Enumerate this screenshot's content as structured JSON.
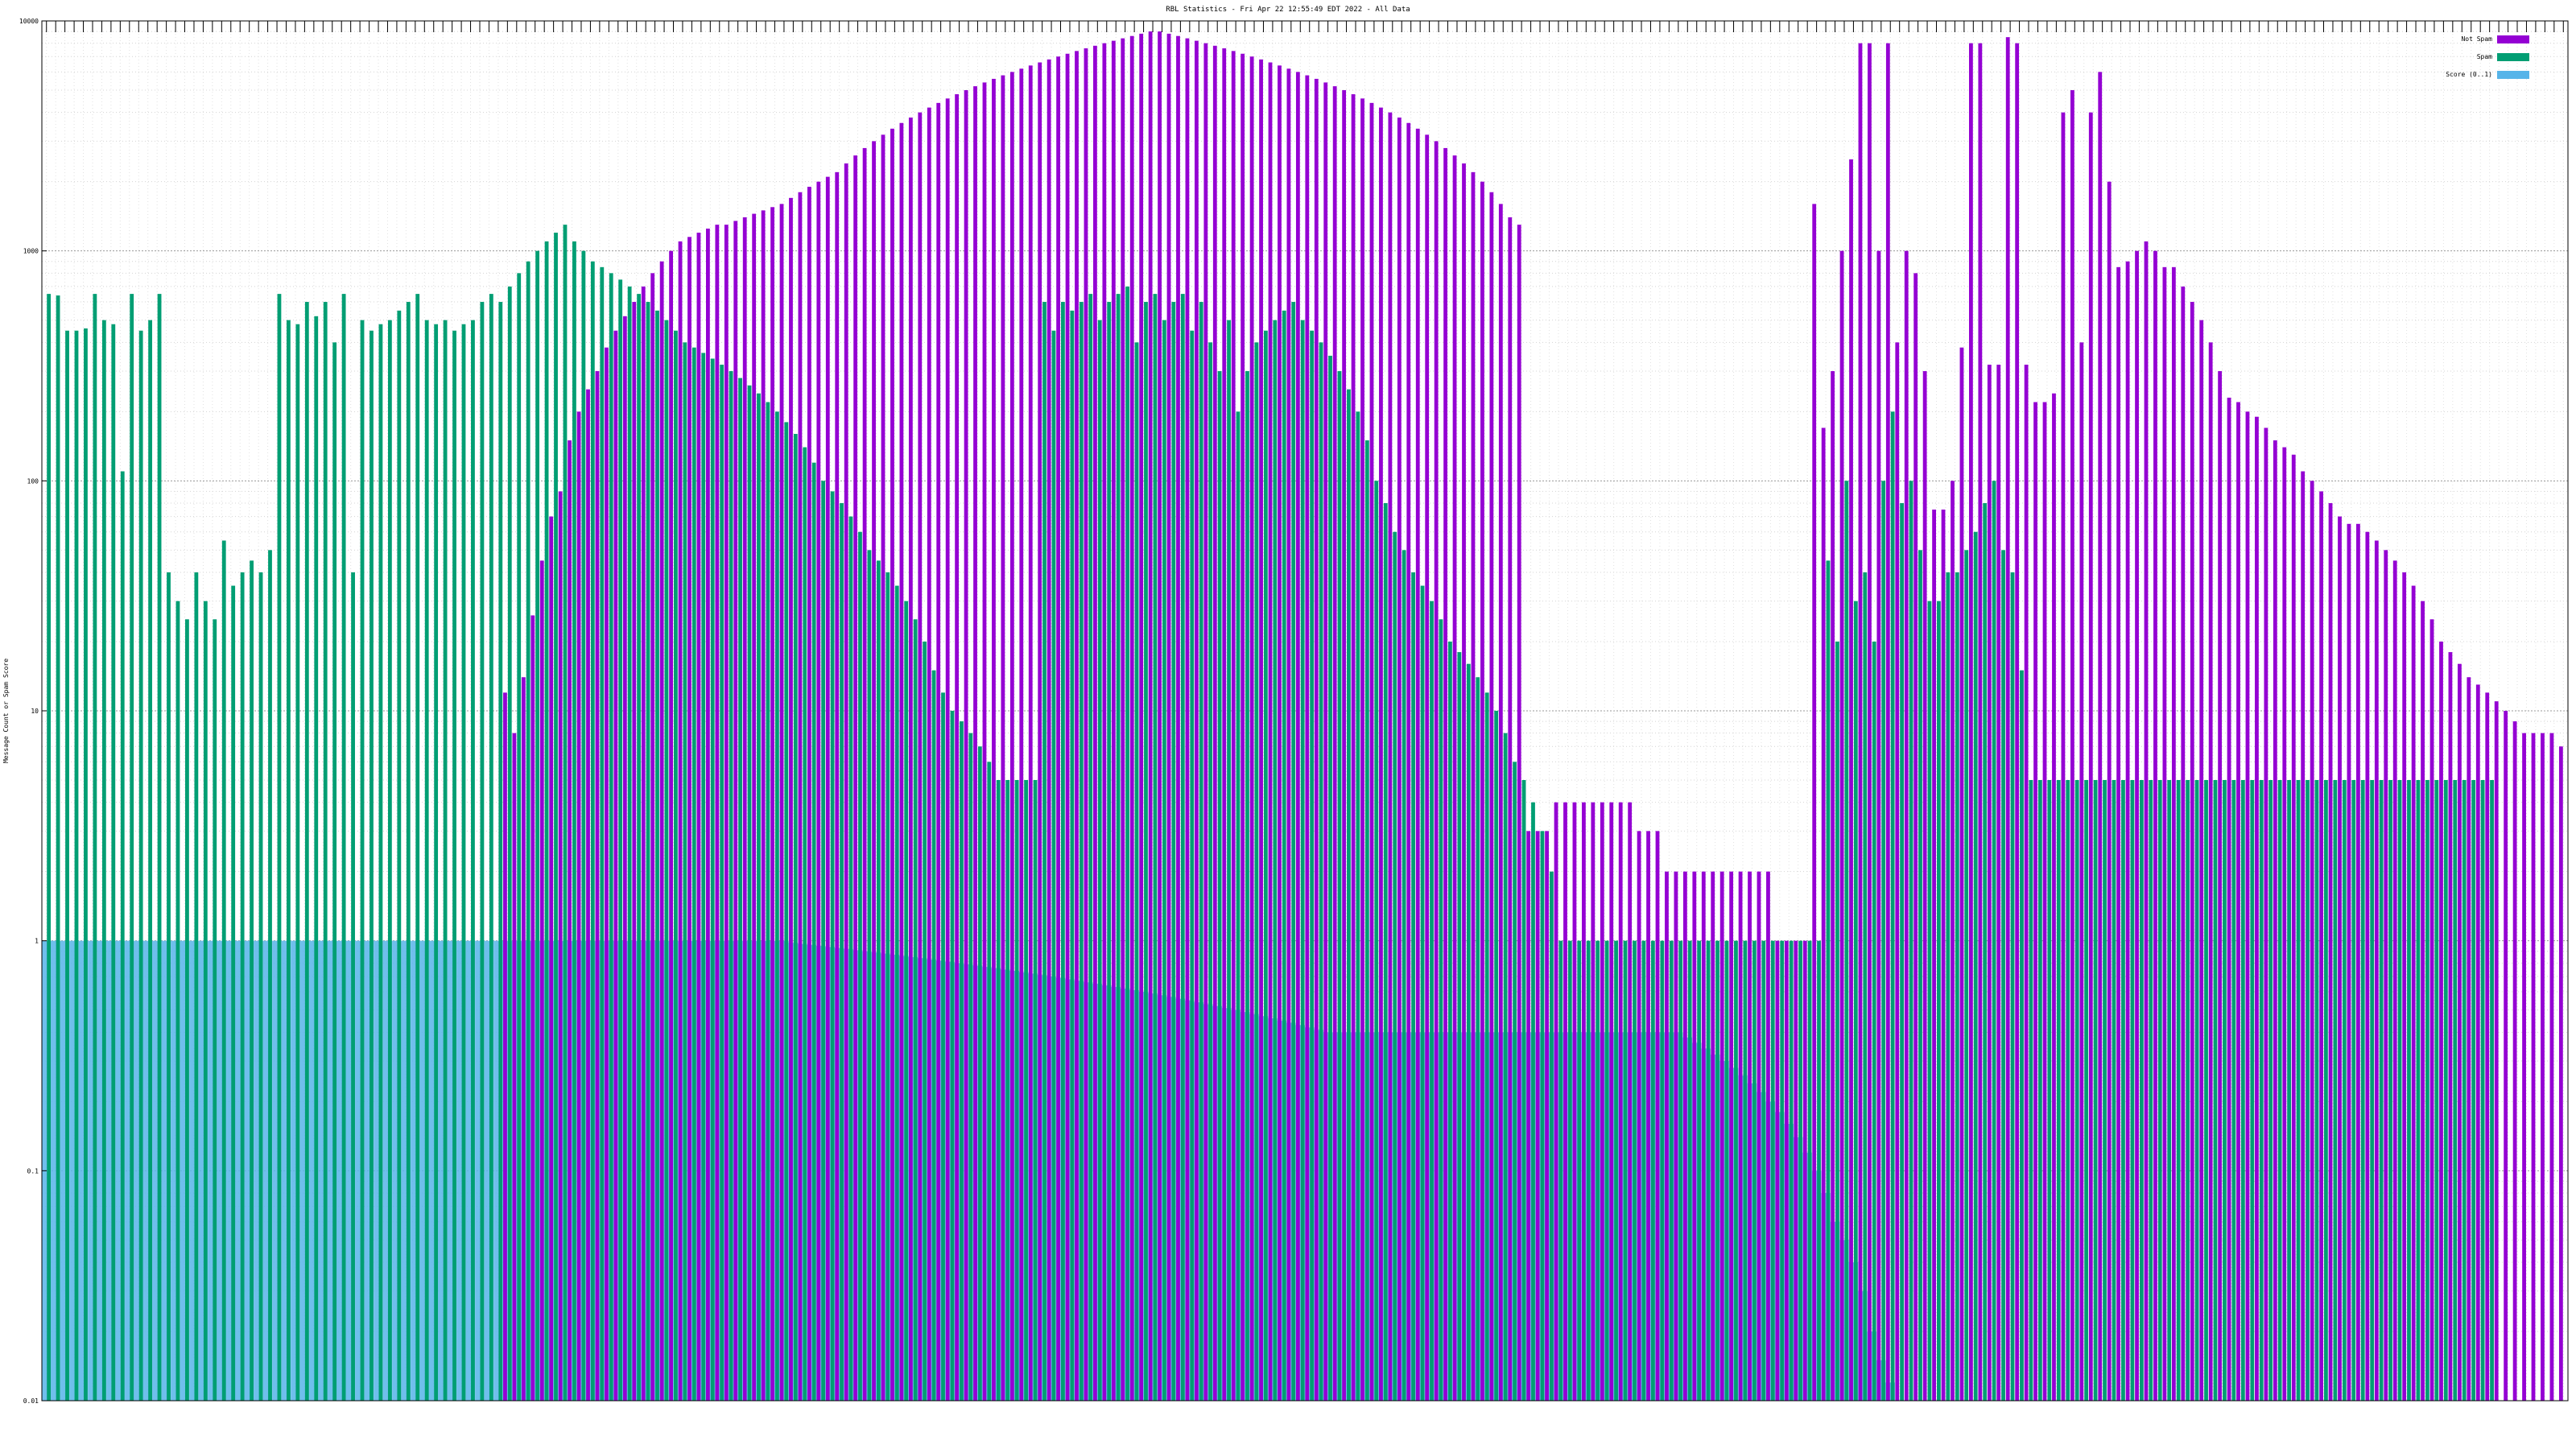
{
  "window": {
    "title": "RBL Statistics - Fri Apr 22 12:55:49 EDT 2022 - All Data"
  },
  "chart_data": {
    "type": "bar",
    "title": "RBL Statistics - Fri Apr 22 12:55:49 EDT 2022 - All Data",
    "xlabel": "",
    "ylabel": "Message Count or Spam Score",
    "yscale": "log",
    "ylim": [
      0.01,
      10000
    ],
    "yticks": [
      "0.01",
      "0.1",
      "1",
      "10",
      "100",
      "1000",
      "10000"
    ],
    "grid": true,
    "legend_position": "top-right",
    "colors": {
      "not_spam": "#9400d3",
      "spam": "#009e73",
      "score": "#56b4e9"
    },
    "category_count": 274,
    "series": [
      {
        "name": "Not Spam",
        "color": "#9400d3",
        "values": [
          0.01,
          0.01,
          0.01,
          0.01,
          0.01,
          0.01,
          0.01,
          0.01,
          0.01,
          0.01,
          0.01,
          0.01,
          0.01,
          0.01,
          0.01,
          0.01,
          0.01,
          0.01,
          0.01,
          0.01,
          0.01,
          0.01,
          0.01,
          0.01,
          0.01,
          0.01,
          0.01,
          0.01,
          0.01,
          0.01,
          0.01,
          0.01,
          0.01,
          0.01,
          0.01,
          0.01,
          0.01,
          0.01,
          0.01,
          0.01,
          0.01,
          0.01,
          0.01,
          0.01,
          0.01,
          0.01,
          0.01,
          0.01,
          0.01,
          0.01,
          12,
          8,
          14,
          26,
          45,
          70,
          90,
          150,
          200,
          250,
          300,
          380,
          450,
          520,
          600,
          700,
          800,
          900,
          1000,
          1100,
          1150,
          1200,
          1250,
          1300,
          1300,
          1350,
          1400,
          1450,
          1500,
          1550,
          1600,
          1700,
          1800,
          1900,
          2000,
          2100,
          2200,
          2400,
          2600,
          2800,
          3000,
          3200,
          3400,
          3600,
          3800,
          4000,
          4200,
          4400,
          4600,
          4800,
          5000,
          5200,
          5400,
          5600,
          5800,
          6000,
          6200,
          6400,
          6600,
          6800,
          7000,
          7200,
          7400,
          7600,
          7800,
          8000,
          8200,
          8400,
          8600,
          8800,
          9000,
          9000,
          8800,
          8600,
          8400,
          8200,
          8000,
          7800,
          7600,
          7400,
          7200,
          7000,
          6800,
          6600,
          6400,
          6200,
          6000,
          5800,
          5600,
          5400,
          5200,
          5000,
          4800,
          4600,
          4400,
          4200,
          4000,
          3800,
          3600,
          3400,
          3200,
          3000,
          2800,
          2600,
          2400,
          2200,
          2000,
          1800,
          1600,
          1400,
          1300,
          3,
          3,
          3,
          4,
          4,
          4,
          4,
          4,
          4,
          4,
          4,
          4,
          3,
          3,
          3,
          2,
          2,
          2,
          2,
          2,
          2,
          2,
          2,
          2,
          2,
          2,
          2,
          1,
          1,
          1,
          1,
          1600,
          170,
          300,
          1000,
          2500,
          8000,
          8000,
          1000,
          8000,
          400,
          1000,
          800,
          300,
          75,
          75,
          100,
          380,
          8000,
          8000,
          320,
          320,
          8500,
          8000,
          320,
          220,
          220,
          240,
          4000,
          5000,
          400,
          4000,
          6000,
          2000,
          850,
          900,
          1000,
          1100,
          1000,
          850,
          850,
          700,
          600,
          500,
          400,
          300,
          230,
          220,
          200,
          190,
          170,
          150,
          140,
          130,
          110,
          100,
          90,
          80,
          70,
          65,
          65,
          60,
          55,
          50,
          45,
          40,
          35,
          30,
          25,
          20,
          18,
          16,
          14,
          13,
          12,
          11,
          10,
          9,
          8,
          8,
          8,
          8,
          7,
          7,
          6,
          6,
          5,
          5,
          5,
          5,
          5
        ]
      },
      {
        "name": "Spam",
        "color": "#009e73",
        "values": [
          650,
          640,
          450,
          450,
          460,
          650,
          500,
          480,
          110,
          650,
          450,
          500,
          650,
          40,
          30,
          25,
          40,
          30,
          25,
          55,
          35,
          40,
          45,
          40,
          50,
          650,
          500,
          480,
          600,
          520,
          600,
          400,
          650,
          40,
          500,
          450,
          480,
          500,
          550,
          600,
          650,
          500,
          480,
          500,
          450,
          480,
          500,
          600,
          650,
          600,
          700,
          800,
          900,
          1000,
          1100,
          1200,
          1300,
          1100,
          1000,
          900,
          850,
          800,
          750,
          700,
          650,
          600,
          550,
          500,
          450,
          400,
          380,
          360,
          340,
          320,
          300,
          280,
          260,
          240,
          220,
          200,
          180,
          160,
          140,
          120,
          100,
          90,
          80,
          70,
          60,
          50,
          45,
          40,
          35,
          30,
          25,
          20,
          15,
          12,
          10,
          9,
          8,
          7,
          6,
          5,
          5,
          5,
          5,
          5,
          600,
          450,
          600,
          550,
          600,
          650,
          500,
          600,
          650,
          700,
          400,
          600,
          650,
          500,
          600,
          650,
          450,
          600,
          400,
          300,
          500,
          200,
          300,
          400,
          450,
          500,
          550,
          600,
          500,
          450,
          400,
          350,
          300,
          250,
          200,
          150,
          100,
          80,
          60,
          50,
          40,
          35,
          30,
          25,
          20,
          18,
          16,
          14,
          12,
          10,
          8,
          6,
          5,
          4,
          3,
          2,
          1,
          1,
          1,
          1,
          1,
          1,
          1,
          1,
          1,
          1,
          1,
          1,
          1,
          1,
          1,
          1,
          1,
          1,
          1,
          1,
          1,
          1,
          1,
          1,
          1,
          1,
          1,
          1,
          1,
          45,
          20,
          100,
          30,
          40,
          20,
          100,
          200,
          80,
          100,
          50,
          30,
          30,
          40,
          40,
          50,
          60,
          80,
          100,
          50,
          40,
          15,
          5,
          5,
          5,
          5,
          5,
          5,
          5,
          5,
          5,
          5,
          5,
          5,
          5,
          5,
          5,
          5,
          5,
          5,
          5,
          5,
          5,
          5,
          5,
          5,
          5,
          5,
          5,
          5,
          5,
          5,
          5,
          5,
          5,
          5,
          5,
          5,
          5,
          5,
          5,
          5,
          5,
          5,
          5,
          5,
          5,
          5,
          5,
          5,
          5,
          5,
          5
        ]
      },
      {
        "name": "Score (0..1)",
        "color": "#56b4e9",
        "values": [
          1,
          1,
          1,
          1,
          1,
          1,
          1,
          1,
          1,
          1,
          1,
          1,
          1,
          1,
          1,
          1,
          1,
          1,
          1,
          1,
          1,
          1,
          1,
          1,
          1,
          1,
          1,
          1,
          1,
          1,
          1,
          1,
          1,
          1,
          1,
          1,
          1,
          1,
          1,
          1,
          1,
          1,
          1,
          1,
          1,
          1,
          1,
          1,
          1,
          1,
          1,
          1,
          1,
          1,
          1,
          1,
          1,
          1,
          1,
          1,
          1,
          1,
          1,
          1,
          1,
          1,
          1,
          1,
          1,
          1,
          1,
          1,
          1,
          1,
          1,
          1,
          1,
          1,
          1,
          1,
          1,
          0.98,
          0.97,
          0.96,
          0.95,
          0.94,
          0.93,
          0.92,
          0.91,
          0.9,
          0.89,
          0.88,
          0.87,
          0.86,
          0.85,
          0.84,
          0.83,
          0.82,
          0.81,
          0.8,
          0.79,
          0.78,
          0.77,
          0.76,
          0.75,
          0.74,
          0.73,
          0.72,
          0.71,
          0.7,
          0.69,
          0.68,
          0.67,
          0.66,
          0.65,
          0.64,
          0.63,
          0.62,
          0.61,
          0.6,
          0.59,
          0.58,
          0.57,
          0.56,
          0.55,
          0.54,
          0.53,
          0.52,
          0.51,
          0.5,
          0.49,
          0.48,
          0.47,
          0.46,
          0.45,
          0.44,
          0.43,
          0.42,
          0.41,
          0.4,
          0.4,
          0.4,
          0.4,
          0.4,
          0.4,
          0.4,
          0.4,
          0.4,
          0.4,
          0.4,
          0.4,
          0.4,
          0.4,
          0.4,
          0.4,
          0.4,
          0.4,
          0.4,
          0.4,
          0.4,
          0.4,
          0.4,
          0.4,
          0.4,
          0.4,
          0.4,
          0.4,
          0.4,
          0.4,
          0.4,
          0.4,
          0.4,
          0.4,
          0.4,
          0.4,
          0.4,
          0.4,
          0.4,
          0.38,
          0.36,
          0.34,
          0.32,
          0.3,
          0.28,
          0.26,
          0.24,
          0.22,
          0.2,
          0.18,
          0.16,
          0.14,
          0.12,
          0.1,
          0.08,
          0.06,
          0.05,
          0.04,
          0.03,
          0.02,
          0.015,
          0.012,
          0.01,
          0.01,
          0.01,
          0.01,
          0.01,
          0.01,
          0.01,
          0.01,
          0.01,
          0.01,
          0.01,
          0.01,
          0.01,
          0.01,
          0.01,
          0.01,
          0.01,
          0.01,
          0.01,
          0.01,
          0.01,
          0.01,
          0.01,
          0.01,
          0.01,
          0.01,
          0.01,
          0.01,
          0.01,
          0.01,
          0.01,
          0.01,
          0.01,
          0.01,
          0.01,
          0.01,
          0.01,
          0.01,
          0.01,
          0.01,
          0.01,
          0.01,
          0.01,
          0.01,
          0.01,
          0.01,
          0.01,
          0.01,
          0.01,
          0.01,
          0.01,
          0.01,
          0.01,
          0.01,
          0.01,
          0.01,
          0.01
        ]
      }
    ]
  }
}
